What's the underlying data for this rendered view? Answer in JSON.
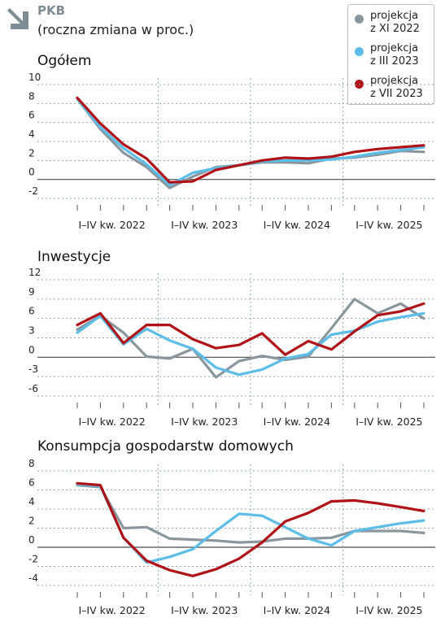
{
  "header": {
    "title": "PKB",
    "subtitle": "(roczna zmiana w proc.)"
  },
  "colors": {
    "projekcja_xi_2022": "#8a969e",
    "projekcja_iii_2023": "#5bbde8",
    "projekcja_vii_2023": "#b01218",
    "grid": "#9aa3a8",
    "axis": "#4a4a4a",
    "arrow_icon": "#7e8c96"
  },
  "icons": {
    "header_arrow": "arrow-down-right-icon"
  },
  "legend": {
    "placement": "top-right",
    "items": [
      {
        "label": "projekcja\nz XI 2022",
        "color": "#8a969e"
      },
      {
        "label": "projekcja\nz III 2023",
        "color": "#5bbde8"
      },
      {
        "label": "projekcja\nz VII 2023",
        "color": "#b01218"
      }
    ]
  },
  "chart_data": [
    {
      "type": "line",
      "title": "Ogółem",
      "x": [
        "2022Q1",
        "2022Q2",
        "2022Q3",
        "2022Q4",
        "2023Q1",
        "2023Q2",
        "2023Q3",
        "2023Q4",
        "2024Q1",
        "2024Q2",
        "2024Q3",
        "2024Q4",
        "2025Q1",
        "2025Q2",
        "2025Q3",
        "2025Q4"
      ],
      "x_tick_labels": [
        "I–IV kw. 2022",
        "I–IV kw. 2023",
        "I–IV kw. 2024",
        "I–IV kw. 2025"
      ],
      "y_ticks": [
        "10",
        "8",
        "6",
        "4",
        "2",
        "0",
        "-2"
      ],
      "ylim": [
        -2.5,
        10
      ],
      "grid": true,
      "series": [
        {
          "name": "projekcja z XI 2022",
          "color": "#8a969e",
          "values": [
            8.5,
            5.3,
            2.8,
            1.3,
            -0.9,
            0.3,
            1.3,
            1.5,
            1.8,
            1.8,
            1.7,
            2.2,
            2.3,
            2.6,
            3.0,
            2.9
          ]
        },
        {
          "name": "projekcja z III 2023",
          "color": "#5bbde8",
          "values": [
            8.5,
            5.5,
            3.3,
            1.6,
            -0.6,
            0.7,
            1.2,
            1.5,
            1.9,
            2.0,
            2.0,
            2.1,
            2.4,
            2.8,
            3.1,
            3.4
          ]
        },
        {
          "name": "projekcja z VII 2023",
          "color": "#b01218",
          "values": [
            8.6,
            5.9,
            3.7,
            2.2,
            -0.3,
            -0.2,
            1.0,
            1.5,
            2.0,
            2.3,
            2.2,
            2.4,
            2.9,
            3.2,
            3.4,
            3.6
          ]
        }
      ]
    },
    {
      "type": "line",
      "title": "Inwestycje",
      "x": [
        "2022Q1",
        "2022Q2",
        "2022Q3",
        "2022Q4",
        "2023Q1",
        "2023Q2",
        "2023Q3",
        "2023Q4",
        "2024Q1",
        "2024Q2",
        "2024Q3",
        "2024Q4",
        "2025Q1",
        "2025Q2",
        "2025Q3",
        "2025Q4"
      ],
      "x_tick_labels": [
        "I–IV kw. 2022",
        "I–IV kw. 2023",
        "I–IV kw. 2024",
        "I–IV kw. 2025"
      ],
      "y_ticks": [
        "12",
        "9",
        "6",
        "3",
        "0",
        "-3",
        "-6"
      ],
      "ylim": [
        -7,
        12
      ],
      "grid": true,
      "series": [
        {
          "name": "projekcja z XI 2022",
          "color": "#8a969e",
          "values": [
            4.3,
            6.4,
            3.8,
            0.1,
            -0.2,
            1.3,
            -3.1,
            -0.6,
            0.2,
            -0.4,
            0.1,
            4.5,
            9.0,
            6.8,
            8.3,
            6.0
          ]
        },
        {
          "name": "projekcja z III 2023",
          "color": "#5bbde8",
          "values": [
            3.8,
            6.4,
            2.0,
            4.4,
            2.6,
            1.3,
            -1.6,
            -2.7,
            -1.9,
            -0.2,
            0.5,
            3.5,
            4.1,
            5.5,
            6.2,
            6.8
          ]
        },
        {
          "name": "projekcja z VII 2023",
          "color": "#b01218",
          "values": [
            5.0,
            6.8,
            2.2,
            5.0,
            5.0,
            2.8,
            1.4,
            1.9,
            3.7,
            0.4,
            2.5,
            1.2,
            4.0,
            6.5,
            7.1,
            8.3
          ]
        }
      ]
    },
    {
      "type": "line",
      "title": "Konsumpcja gospodarstw domowych",
      "x": [
        "2022Q1",
        "2022Q2",
        "2022Q3",
        "2022Q4",
        "2023Q1",
        "2023Q2",
        "2023Q3",
        "2023Q4",
        "2024Q1",
        "2024Q2",
        "2024Q3",
        "2024Q4",
        "2025Q1",
        "2025Q2",
        "2025Q3",
        "2025Q4"
      ],
      "x_tick_labels": [
        "I–IV kw. 2022",
        "I–IV kw. 2023",
        "I–IV kw. 2024",
        "I–IV kw. 2025"
      ],
      "y_ticks": [
        "8",
        "6",
        "4",
        "2",
        "0",
        "-2",
        "-4"
      ],
      "ylim": [
        -4.5,
        8
      ],
      "grid": true,
      "series": [
        {
          "name": "projekcja z XI 2022",
          "color": "#8a969e",
          "values": [
            6.5,
            6.3,
            2.0,
            2.1,
            0.9,
            0.8,
            0.7,
            0.5,
            0.6,
            0.9,
            0.9,
            1.0,
            1.7,
            1.7,
            1.7,
            1.5
          ]
        },
        {
          "name": "projekcja z III 2023",
          "color": "#5bbde8",
          "values": [
            6.6,
            6.4,
            1.0,
            -1.6,
            -1.0,
            -0.2,
            1.7,
            3.5,
            3.3,
            2.1,
            0.9,
            0.2,
            1.7,
            2.1,
            2.5,
            2.8
          ]
        },
        {
          "name": "projekcja z VII 2023",
          "color": "#b01218",
          "values": [
            6.7,
            6.5,
            1.0,
            -1.4,
            -2.4,
            -3.0,
            -2.3,
            -1.2,
            0.5,
            2.7,
            3.6,
            4.8,
            4.9,
            4.6,
            4.2,
            3.8
          ]
        }
      ]
    }
  ]
}
